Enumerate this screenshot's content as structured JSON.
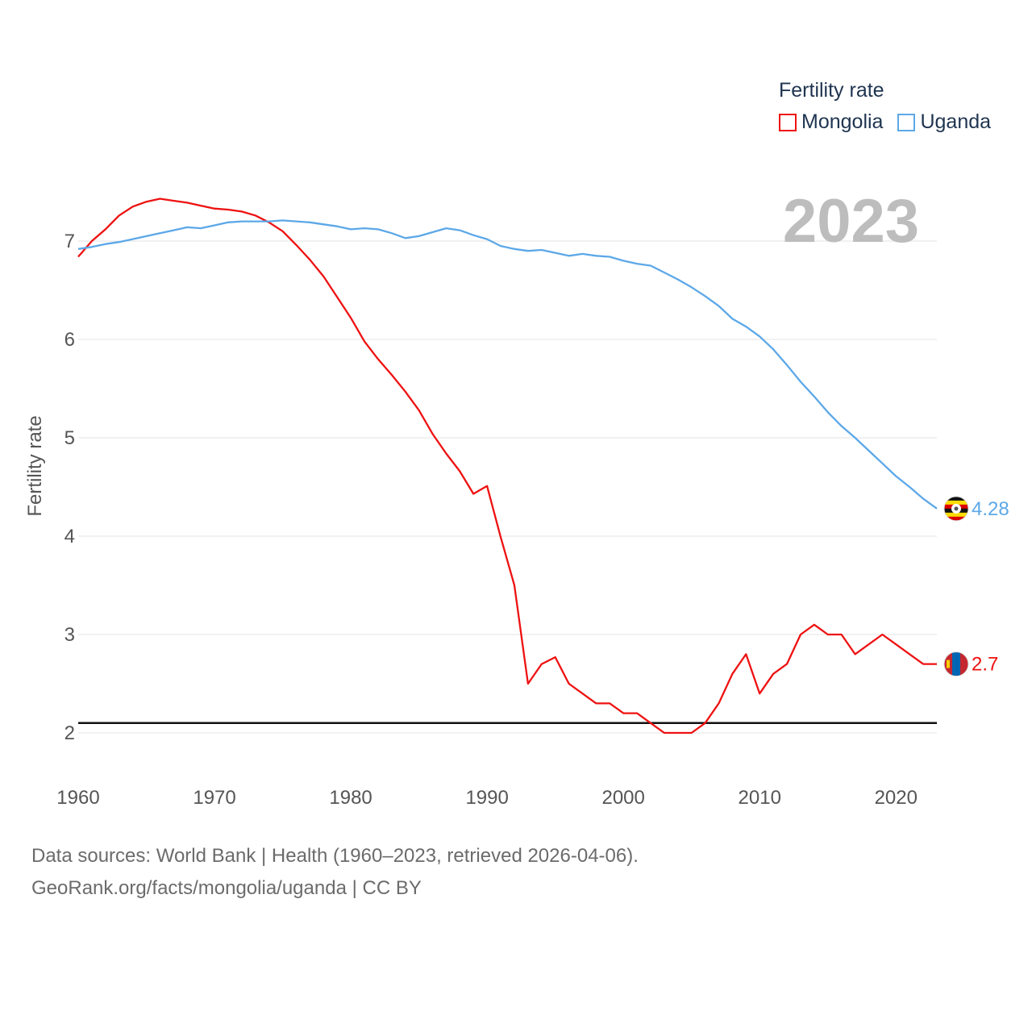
{
  "legend": {
    "title": "Fertility rate",
    "items": [
      {
        "label": "Mongolia",
        "color": "#ee1111"
      },
      {
        "label": "Uganda",
        "color": "#5ca8e8"
      }
    ]
  },
  "footer": {
    "line1": "Data sources: World Bank | Health (1960–2023, retrieved 2026-04-06).",
    "line2": "GeoRank.org/facts/mongolia/uganda | CC BY"
  },
  "chart_data": {
    "type": "line",
    "year_label": "2023",
    "ylabel": "Fertility rate",
    "xlim": [
      1960,
      2023
    ],
    "ylim": [
      1.6,
      7.6
    ],
    "x_ticks": [
      1960,
      1970,
      1980,
      1990,
      2000,
      2010,
      2020
    ],
    "y_ticks": [
      2,
      3,
      4,
      5,
      6,
      7
    ],
    "reference_line": 2.1,
    "x": [
      1960,
      1961,
      1962,
      1963,
      1964,
      1965,
      1966,
      1967,
      1968,
      1969,
      1970,
      1971,
      1972,
      1973,
      1974,
      1975,
      1976,
      1977,
      1978,
      1979,
      1980,
      1981,
      1982,
      1983,
      1984,
      1985,
      1986,
      1987,
      1988,
      1989,
      1990,
      1991,
      1992,
      1993,
      1994,
      1995,
      1996,
      1997,
      1998,
      1999,
      2000,
      2001,
      2002,
      2003,
      2004,
      2005,
      2006,
      2007,
      2008,
      2009,
      2010,
      2011,
      2012,
      2013,
      2014,
      2015,
      2016,
      2017,
      2018,
      2019,
      2020,
      2021,
      2022,
      2023
    ],
    "series": [
      {
        "name": "Mongolia",
        "color": "#ee1111",
        "end_label": "2.7",
        "values": [
          6.84,
          7.0,
          7.12,
          7.26,
          7.35,
          7.4,
          7.43,
          7.41,
          7.39,
          7.36,
          7.33,
          7.32,
          7.3,
          7.26,
          7.19,
          7.1,
          6.96,
          6.81,
          6.64,
          6.43,
          6.22,
          5.98,
          5.8,
          5.64,
          5.47,
          5.28,
          5.04,
          4.84,
          4.66,
          4.43,
          4.51,
          3.99,
          3.5,
          2.5,
          2.7,
          2.77,
          2.5,
          2.4,
          2.3,
          2.3,
          2.2,
          2.2,
          2.1,
          2.0,
          2.0,
          2.0,
          2.1,
          2.3,
          2.6,
          2.8,
          2.4,
          2.6,
          2.7,
          3.0,
          3.1,
          3.0,
          3.0,
          2.8,
          2.9,
          3.0,
          2.9,
          2.8,
          2.7,
          2.7
        ]
      },
      {
        "name": "Uganda",
        "color": "#5ca8e8",
        "end_label": "4.28",
        "values": [
          6.92,
          6.94,
          6.97,
          6.99,
          7.02,
          7.05,
          7.08,
          7.11,
          7.14,
          7.13,
          7.16,
          7.19,
          7.2,
          7.2,
          7.2,
          7.21,
          7.2,
          7.19,
          7.17,
          7.15,
          7.12,
          7.13,
          7.12,
          7.08,
          7.03,
          7.05,
          7.09,
          7.13,
          7.11,
          7.06,
          7.02,
          6.95,
          6.92,
          6.9,
          6.91,
          6.88,
          6.85,
          6.87,
          6.85,
          6.84,
          6.8,
          6.77,
          6.75,
          6.68,
          6.61,
          6.53,
          6.44,
          6.34,
          6.21,
          6.13,
          6.03,
          5.9,
          5.74,
          5.57,
          5.42,
          5.26,
          5.12,
          5.0,
          4.87,
          4.74,
          4.61,
          4.5,
          4.38,
          4.28
        ]
      }
    ]
  }
}
